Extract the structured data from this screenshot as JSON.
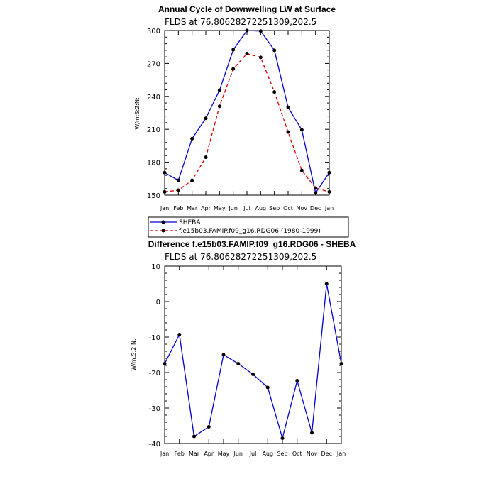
{
  "chart_data": [
    {
      "type": "line",
      "title": "Annual Cycle of Downwelling LW at Surface",
      "subtitle": "FLDS at 76.80628272251309,202.5",
      "ylabel": "W/m:S:2:N:",
      "xlabel": "",
      "categories": [
        "Jan",
        "Feb",
        "Mar",
        "Apr",
        "May",
        "Jun",
        "Jul",
        "Aug",
        "Sep",
        "Oct",
        "Nov",
        "Dec",
        "Jan"
      ],
      "ylim": [
        150,
        300
      ],
      "yticks": [
        150,
        180,
        210,
        240,
        270,
        300
      ],
      "series": [
        {
          "name": "SHEBA",
          "color": "#0000cc",
          "dash": "solid",
          "values": [
            170.5,
            163.5,
            201.5,
            220,
            245.5,
            282.5,
            300,
            299.5,
            282,
            230,
            209.5,
            152,
            170.5
          ]
        },
        {
          "name": "f.e15b03.FAMIP.f09_g16.RDG06 (1980-1999)",
          "color": "#dd0000",
          "dash": "dashed",
          "values": [
            153,
            154.5,
            163.5,
            184.5,
            231,
            265,
            279,
            275.5,
            244,
            207.5,
            172.5,
            156.5,
            153
          ]
        }
      ],
      "legend": "bottom-left"
    },
    {
      "type": "line",
      "title": "Difference f.e15b03.FAMIP.f09_g16.RDG06 - SHEBA",
      "subtitle": "FLDS at 76.80628272251309,202.5",
      "ylabel": "W/m:S:2:N:",
      "xlabel": "",
      "categories": [
        "Jan",
        "Feb",
        "Mar",
        "Apr",
        "May",
        "Jun",
        "Jul",
        "Aug",
        "Sep",
        "Oct",
        "Nov",
        "Dec",
        "Jan"
      ],
      "ylim": [
        -40,
        10
      ],
      "yticks": [
        -40,
        -30,
        -20,
        -10,
        0,
        10
      ],
      "series": [
        {
          "color": "#0000cc",
          "dash": "solid",
          "values": [
            -17.5,
            -9.3,
            -38,
            -35.3,
            -15,
            -17.5,
            -20.5,
            -24.2,
            -38.5,
            -22.3,
            -37,
            5,
            -17.5
          ]
        }
      ]
    }
  ]
}
